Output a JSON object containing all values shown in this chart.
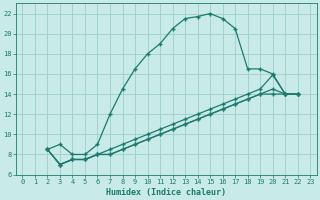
{
  "xlabel": "Humidex (Indice chaleur)",
  "background_color": "#c8ebe8",
  "grid_color": "#9ececa",
  "line_color": "#1e7a6e",
  "xlim": [
    -0.5,
    23.5
  ],
  "ylim": [
    6,
    23
  ],
  "xticks": [
    0,
    1,
    2,
    3,
    4,
    5,
    6,
    7,
    8,
    9,
    10,
    11,
    12,
    13,
    14,
    15,
    16,
    17,
    18,
    19,
    20,
    21,
    22,
    23
  ],
  "yticks": [
    6,
    8,
    10,
    12,
    14,
    16,
    18,
    20,
    22
  ],
  "series_main": {
    "x": [
      2,
      3,
      4,
      5,
      6,
      7,
      8,
      9,
      10,
      11,
      12,
      13,
      14,
      15,
      16,
      17,
      18,
      19,
      20,
      21,
      22
    ],
    "y": [
      8.5,
      9.0,
      8.0,
      8.0,
      9.0,
      12.0,
      14.5,
      16.5,
      18.0,
      19.0,
      20.5,
      21.5,
      21.7,
      22.0,
      21.5,
      20.5,
      16.5,
      16.5,
      16.0,
      14.0,
      14.0
    ]
  },
  "series_low1": {
    "x": [
      2,
      3,
      4,
      5,
      6,
      7,
      8,
      9,
      10,
      11,
      12,
      13,
      14,
      15,
      16,
      17,
      18,
      19,
      20,
      21,
      22
    ],
    "y": [
      8.5,
      7.0,
      7.5,
      7.5,
      8.0,
      8.5,
      9.0,
      9.5,
      10.0,
      10.5,
      11.0,
      11.5,
      12.0,
      12.5,
      13.0,
      13.5,
      14.0,
      14.5,
      15.9,
      14.0,
      14.0
    ]
  },
  "series_low2": {
    "x": [
      2,
      3,
      4,
      5,
      6,
      7,
      8,
      9,
      10,
      11,
      12,
      13,
      14,
      15,
      16,
      17,
      18,
      19,
      20,
      21,
      22
    ],
    "y": [
      8.5,
      7.0,
      7.5,
      7.5,
      8.0,
      8.0,
      8.5,
      9.0,
      9.5,
      10.0,
      10.5,
      11.0,
      11.5,
      12.0,
      12.5,
      13.0,
      13.5,
      14.0,
      14.5,
      14.0,
      14.0
    ]
  },
  "series_low3": {
    "x": [
      2,
      3,
      4,
      5,
      6,
      7,
      8,
      9,
      10,
      11,
      12,
      13,
      14,
      15,
      16,
      17,
      18,
      19,
      20,
      21,
      22
    ],
    "y": [
      8.5,
      7.0,
      7.5,
      7.5,
      8.0,
      8.0,
      8.5,
      9.0,
      9.5,
      10.0,
      10.5,
      11.0,
      11.5,
      12.0,
      12.5,
      13.0,
      13.5,
      14.0,
      14.0,
      14.0,
      14.0
    ]
  }
}
